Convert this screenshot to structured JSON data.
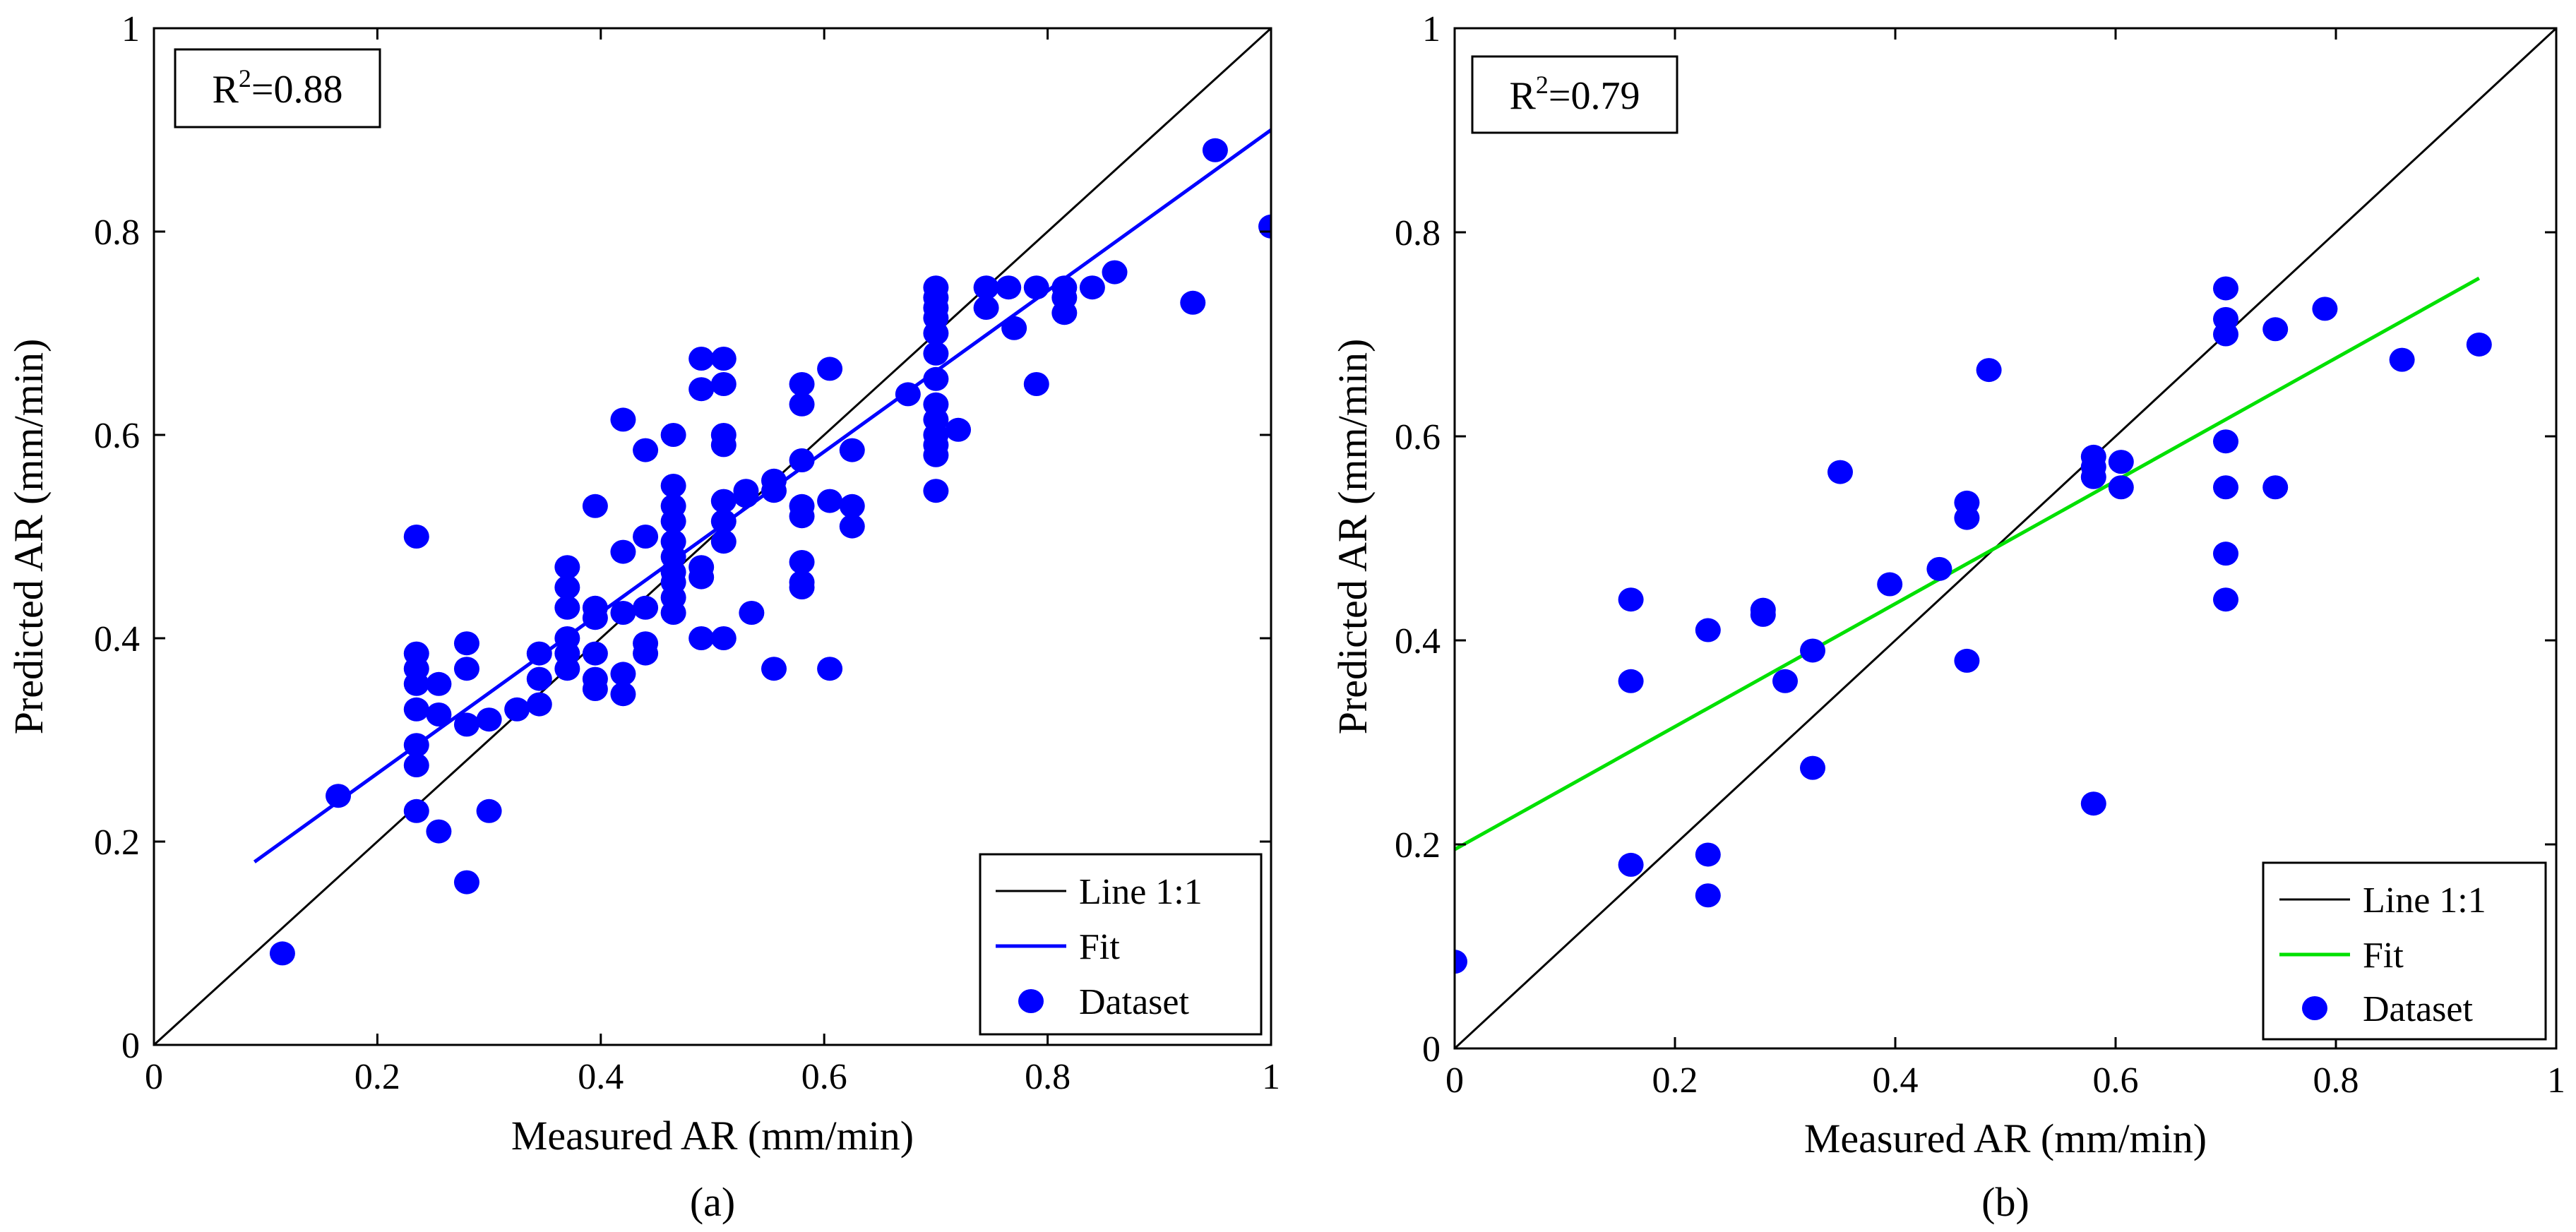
{
  "chart_data": [
    {
      "type": "scatter",
      "panel_label": "(a)",
      "xlabel": "Measured AR (mm/min)",
      "ylabel": "Predicted AR (mm/min)",
      "xlim": [
        0,
        1
      ],
      "ylim": [
        0,
        1
      ],
      "xticks": [
        "0",
        "0.2",
        "0.4",
        "0.6",
        "0.8",
        "1"
      ],
      "yticks": [
        "0",
        "0.2",
        "0.4",
        "0.6",
        "0.8",
        "1"
      ],
      "annotation": {
        "prefix": "R",
        "sup": "2",
        "suffix": "=0.88"
      },
      "legend": {
        "position": "bottom-right",
        "entries": [
          "Line 1:1",
          "Fit",
          "Dataset"
        ]
      },
      "colors": {
        "identity": "#000000",
        "fit": "#0000ff",
        "points": "#0000ff"
      },
      "identity_line": {
        "x": [
          0,
          1
        ],
        "y": [
          0,
          1
        ]
      },
      "fit_line": {
        "x": [
          0.09,
          1.0
        ],
        "y": [
          0.18,
          0.9
        ]
      },
      "points": [
        [
          0.115,
          0.09
        ],
        [
          0.165,
          0.245
        ],
        [
          0.235,
          0.5
        ],
        [
          0.235,
          0.385
        ],
        [
          0.235,
          0.37
        ],
        [
          0.235,
          0.355
        ],
        [
          0.235,
          0.33
        ],
        [
          0.235,
          0.295
        ],
        [
          0.235,
          0.275
        ],
        [
          0.235,
          0.23
        ],
        [
          0.255,
          0.355
        ],
        [
          0.255,
          0.325
        ],
        [
          0.255,
          0.21
        ],
        [
          0.28,
          0.395
        ],
        [
          0.28,
          0.37
        ],
        [
          0.28,
          0.315
        ],
        [
          0.28,
          0.16
        ],
        [
          0.3,
          0.32
        ],
        [
          0.3,
          0.23
        ],
        [
          0.325,
          0.33
        ],
        [
          0.345,
          0.385
        ],
        [
          0.345,
          0.36
        ],
        [
          0.345,
          0.335
        ],
        [
          0.37,
          0.47
        ],
        [
          0.37,
          0.45
        ],
        [
          0.37,
          0.43
        ],
        [
          0.37,
          0.4
        ],
        [
          0.37,
          0.385
        ],
        [
          0.37,
          0.37
        ],
        [
          0.395,
          0.53
        ],
        [
          0.395,
          0.43
        ],
        [
          0.395,
          0.42
        ],
        [
          0.395,
          0.385
        ],
        [
          0.395,
          0.36
        ],
        [
          0.395,
          0.35
        ],
        [
          0.42,
          0.615
        ],
        [
          0.42,
          0.485
        ],
        [
          0.42,
          0.425
        ],
        [
          0.42,
          0.365
        ],
        [
          0.42,
          0.345
        ],
        [
          0.44,
          0.585
        ],
        [
          0.44,
          0.5
        ],
        [
          0.44,
          0.43
        ],
        [
          0.44,
          0.395
        ],
        [
          0.44,
          0.385
        ],
        [
          0.465,
          0.6
        ],
        [
          0.465,
          0.55
        ],
        [
          0.465,
          0.53
        ],
        [
          0.465,
          0.515
        ],
        [
          0.465,
          0.495
        ],
        [
          0.465,
          0.48
        ],
        [
          0.465,
          0.465
        ],
        [
          0.465,
          0.455
        ],
        [
          0.465,
          0.44
        ],
        [
          0.465,
          0.425
        ],
        [
          0.49,
          0.675
        ],
        [
          0.49,
          0.645
        ],
        [
          0.49,
          0.47
        ],
        [
          0.49,
          0.46
        ],
        [
          0.49,
          0.4
        ],
        [
          0.51,
          0.675
        ],
        [
          0.51,
          0.65
        ],
        [
          0.51,
          0.6
        ],
        [
          0.51,
          0.59
        ],
        [
          0.51,
          0.535
        ],
        [
          0.51,
          0.515
        ],
        [
          0.51,
          0.495
        ],
        [
          0.51,
          0.4
        ],
        [
          0.53,
          0.545
        ],
        [
          0.53,
          0.54
        ],
        [
          0.535,
          0.425
        ],
        [
          0.555,
          0.555
        ],
        [
          0.555,
          0.545
        ],
        [
          0.555,
          0.37
        ],
        [
          0.58,
          0.65
        ],
        [
          0.58,
          0.63
        ],
        [
          0.58,
          0.575
        ],
        [
          0.58,
          0.53
        ],
        [
          0.58,
          0.52
        ],
        [
          0.58,
          0.475
        ],
        [
          0.58,
          0.455
        ],
        [
          0.58,
          0.45
        ],
        [
          0.605,
          0.665
        ],
        [
          0.605,
          0.535
        ],
        [
          0.605,
          0.37
        ],
        [
          0.625,
          0.585
        ],
        [
          0.625,
          0.53
        ],
        [
          0.625,
          0.51
        ],
        [
          0.675,
          0.64
        ],
        [
          0.7,
          0.745
        ],
        [
          0.7,
          0.735
        ],
        [
          0.7,
          0.725
        ],
        [
          0.7,
          0.715
        ],
        [
          0.7,
          0.7
        ],
        [
          0.7,
          0.68
        ],
        [
          0.7,
          0.655
        ],
        [
          0.7,
          0.63
        ],
        [
          0.7,
          0.615
        ],
        [
          0.7,
          0.6
        ],
        [
          0.7,
          0.59
        ],
        [
          0.7,
          0.58
        ],
        [
          0.7,
          0.545
        ],
        [
          0.72,
          0.605
        ],
        [
          0.745,
          0.745
        ],
        [
          0.745,
          0.725
        ],
        [
          0.765,
          0.745
        ],
        [
          0.77,
          0.705
        ],
        [
          0.79,
          0.745
        ],
        [
          0.79,
          0.65
        ],
        [
          0.815,
          0.745
        ],
        [
          0.815,
          0.735
        ],
        [
          0.815,
          0.72
        ],
        [
          0.84,
          0.745
        ],
        [
          0.86,
          0.76
        ],
        [
          0.93,
          0.73
        ],
        [
          0.95,
          0.88
        ],
        [
          1.0,
          0.805
        ]
      ]
    },
    {
      "type": "scatter",
      "panel_label": "(b)",
      "xlabel": "Measured AR (mm/min)",
      "ylabel": "Predicted AR (mm/min)",
      "xlim": [
        0,
        1
      ],
      "ylim": [
        0,
        1
      ],
      "xticks": [
        "0",
        "0.2",
        "0.4",
        "0.6",
        "0.8",
        "1"
      ],
      "yticks": [
        "0",
        "0.2",
        "0.4",
        "0.6",
        "0.8",
        "1"
      ],
      "annotation": {
        "prefix": "R",
        "sup": "2",
        "suffix": "=0.79"
      },
      "legend": {
        "position": "bottom-right",
        "entries": [
          "Line 1:1",
          "Fit",
          "Dataset"
        ]
      },
      "colors": {
        "identity": "#000000",
        "fit": "#00e000",
        "points": "#0000ff"
      },
      "identity_line": {
        "x": [
          0,
          1
        ],
        "y": [
          0,
          1
        ]
      },
      "fit_line": {
        "x": [
          0.0,
          0.93
        ],
        "y": [
          0.195,
          0.755
        ]
      },
      "points": [
        [
          0.0,
          0.085
        ],
        [
          0.16,
          0.44
        ],
        [
          0.16,
          0.36
        ],
        [
          0.16,
          0.18
        ],
        [
          0.23,
          0.41
        ],
        [
          0.23,
          0.19
        ],
        [
          0.23,
          0.15
        ],
        [
          0.28,
          0.43
        ],
        [
          0.28,
          0.425
        ],
        [
          0.3,
          0.36
        ],
        [
          0.325,
          0.39
        ],
        [
          0.325,
          0.275
        ],
        [
          0.35,
          0.565
        ],
        [
          0.395,
          0.455
        ],
        [
          0.44,
          0.47
        ],
        [
          0.465,
          0.535
        ],
        [
          0.465,
          0.52
        ],
        [
          0.465,
          0.38
        ],
        [
          0.485,
          0.665
        ],
        [
          0.58,
          0.58
        ],
        [
          0.58,
          0.57
        ],
        [
          0.58,
          0.56
        ],
        [
          0.58,
          0.24
        ],
        [
          0.605,
          0.575
        ],
        [
          0.605,
          0.55
        ],
        [
          0.7,
          0.745
        ],
        [
          0.7,
          0.715
        ],
        [
          0.7,
          0.7
        ],
        [
          0.7,
          0.595
        ],
        [
          0.7,
          0.55
        ],
        [
          0.7,
          0.485
        ],
        [
          0.7,
          0.44
        ],
        [
          0.745,
          0.705
        ],
        [
          0.745,
          0.55
        ],
        [
          0.79,
          0.725
        ],
        [
          0.86,
          0.675
        ],
        [
          0.93,
          0.69
        ]
      ]
    }
  ]
}
